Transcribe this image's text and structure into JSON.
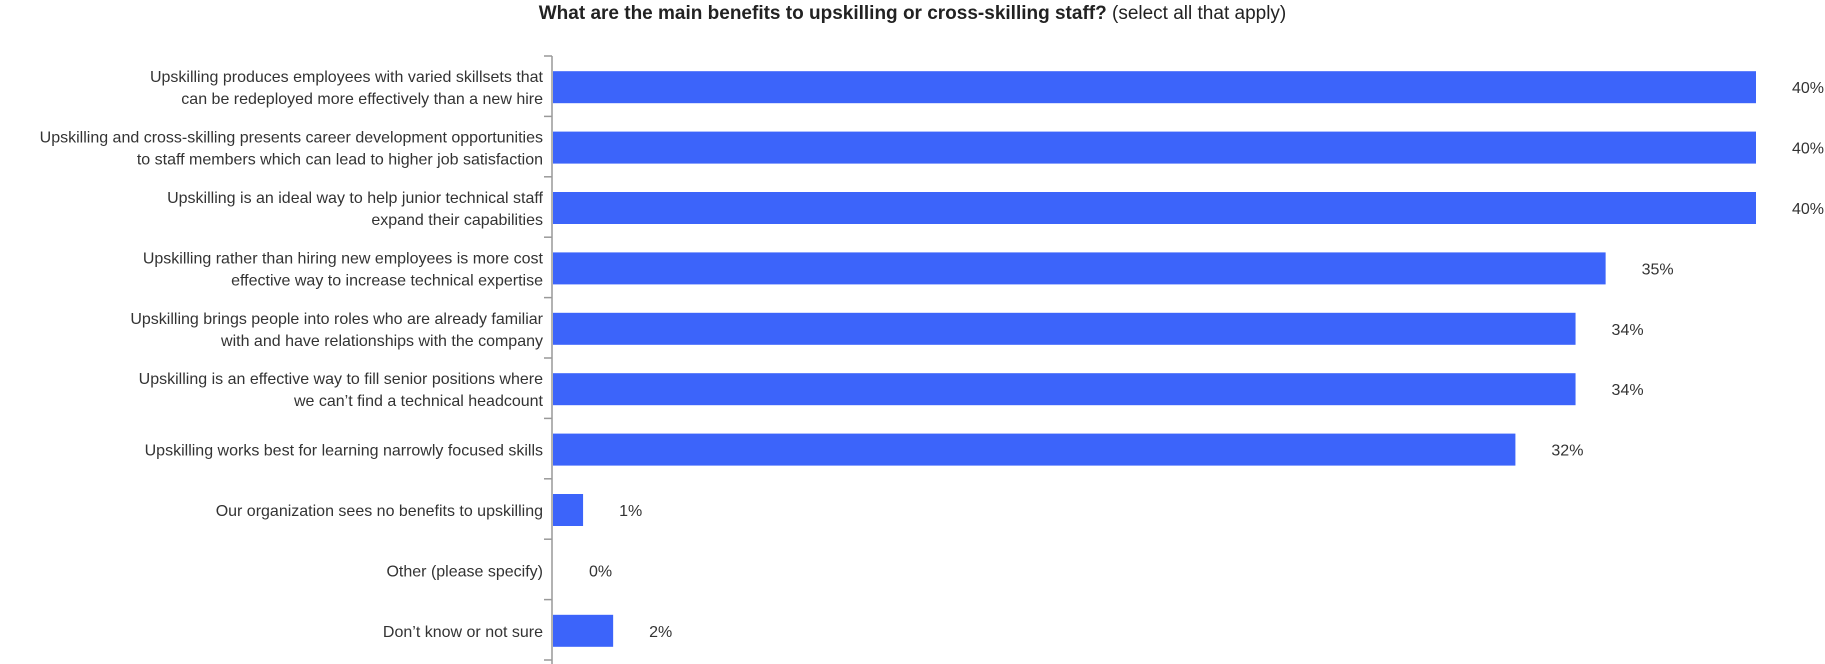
{
  "title": {
    "main": "What are the main benefits to upskilling or cross-skilling staff?",
    "sub": "(select all that apply)"
  },
  "colors": {
    "bar": "#3c64fa",
    "axis": "#999999",
    "text": "#333333"
  },
  "chart_data": {
    "type": "bar",
    "orientation": "horizontal",
    "title": "What are the main benefits to upskilling or cross-skilling staff? (select all that apply)",
    "xlabel": "",
    "ylabel": "",
    "xlim": [
      0,
      40
    ],
    "grid": false,
    "legend": "none",
    "value_suffix": "%",
    "categories": [
      [
        "Upskilling produces employees with varied skillsets that",
        "can be redeployed more effectively than a new hire"
      ],
      [
        "Upskilling and cross-skilling presents career development opportunities",
        "to staff members which can lead to higher job satisfaction"
      ],
      [
        "Upskilling is an ideal way to help junior technical staff",
        "expand their capabilities"
      ],
      [
        "Upskilling rather than hiring new employees is more cost",
        "effective way to increase technical expertise"
      ],
      [
        "Upskilling brings people into roles who are already familiar",
        "with and have relationships with the company"
      ],
      [
        "Upskilling is an effective way to fill senior positions where",
        "we can’t find a technical headcount"
      ],
      [
        "Upskilling works best for learning narrowly focused skills"
      ],
      [
        "Our organization sees no benefits to upskilling"
      ],
      [
        "Other (please specify)"
      ],
      [
        "Don’t know or not sure"
      ]
    ],
    "values": [
      40,
      40,
      40,
      35,
      34,
      34,
      32,
      1,
      0,
      2
    ],
    "value_labels": [
      "40%",
      "40%",
      "40%",
      "35%",
      "34%",
      "34%",
      "32%",
      "1%",
      "0%",
      "2%"
    ]
  }
}
